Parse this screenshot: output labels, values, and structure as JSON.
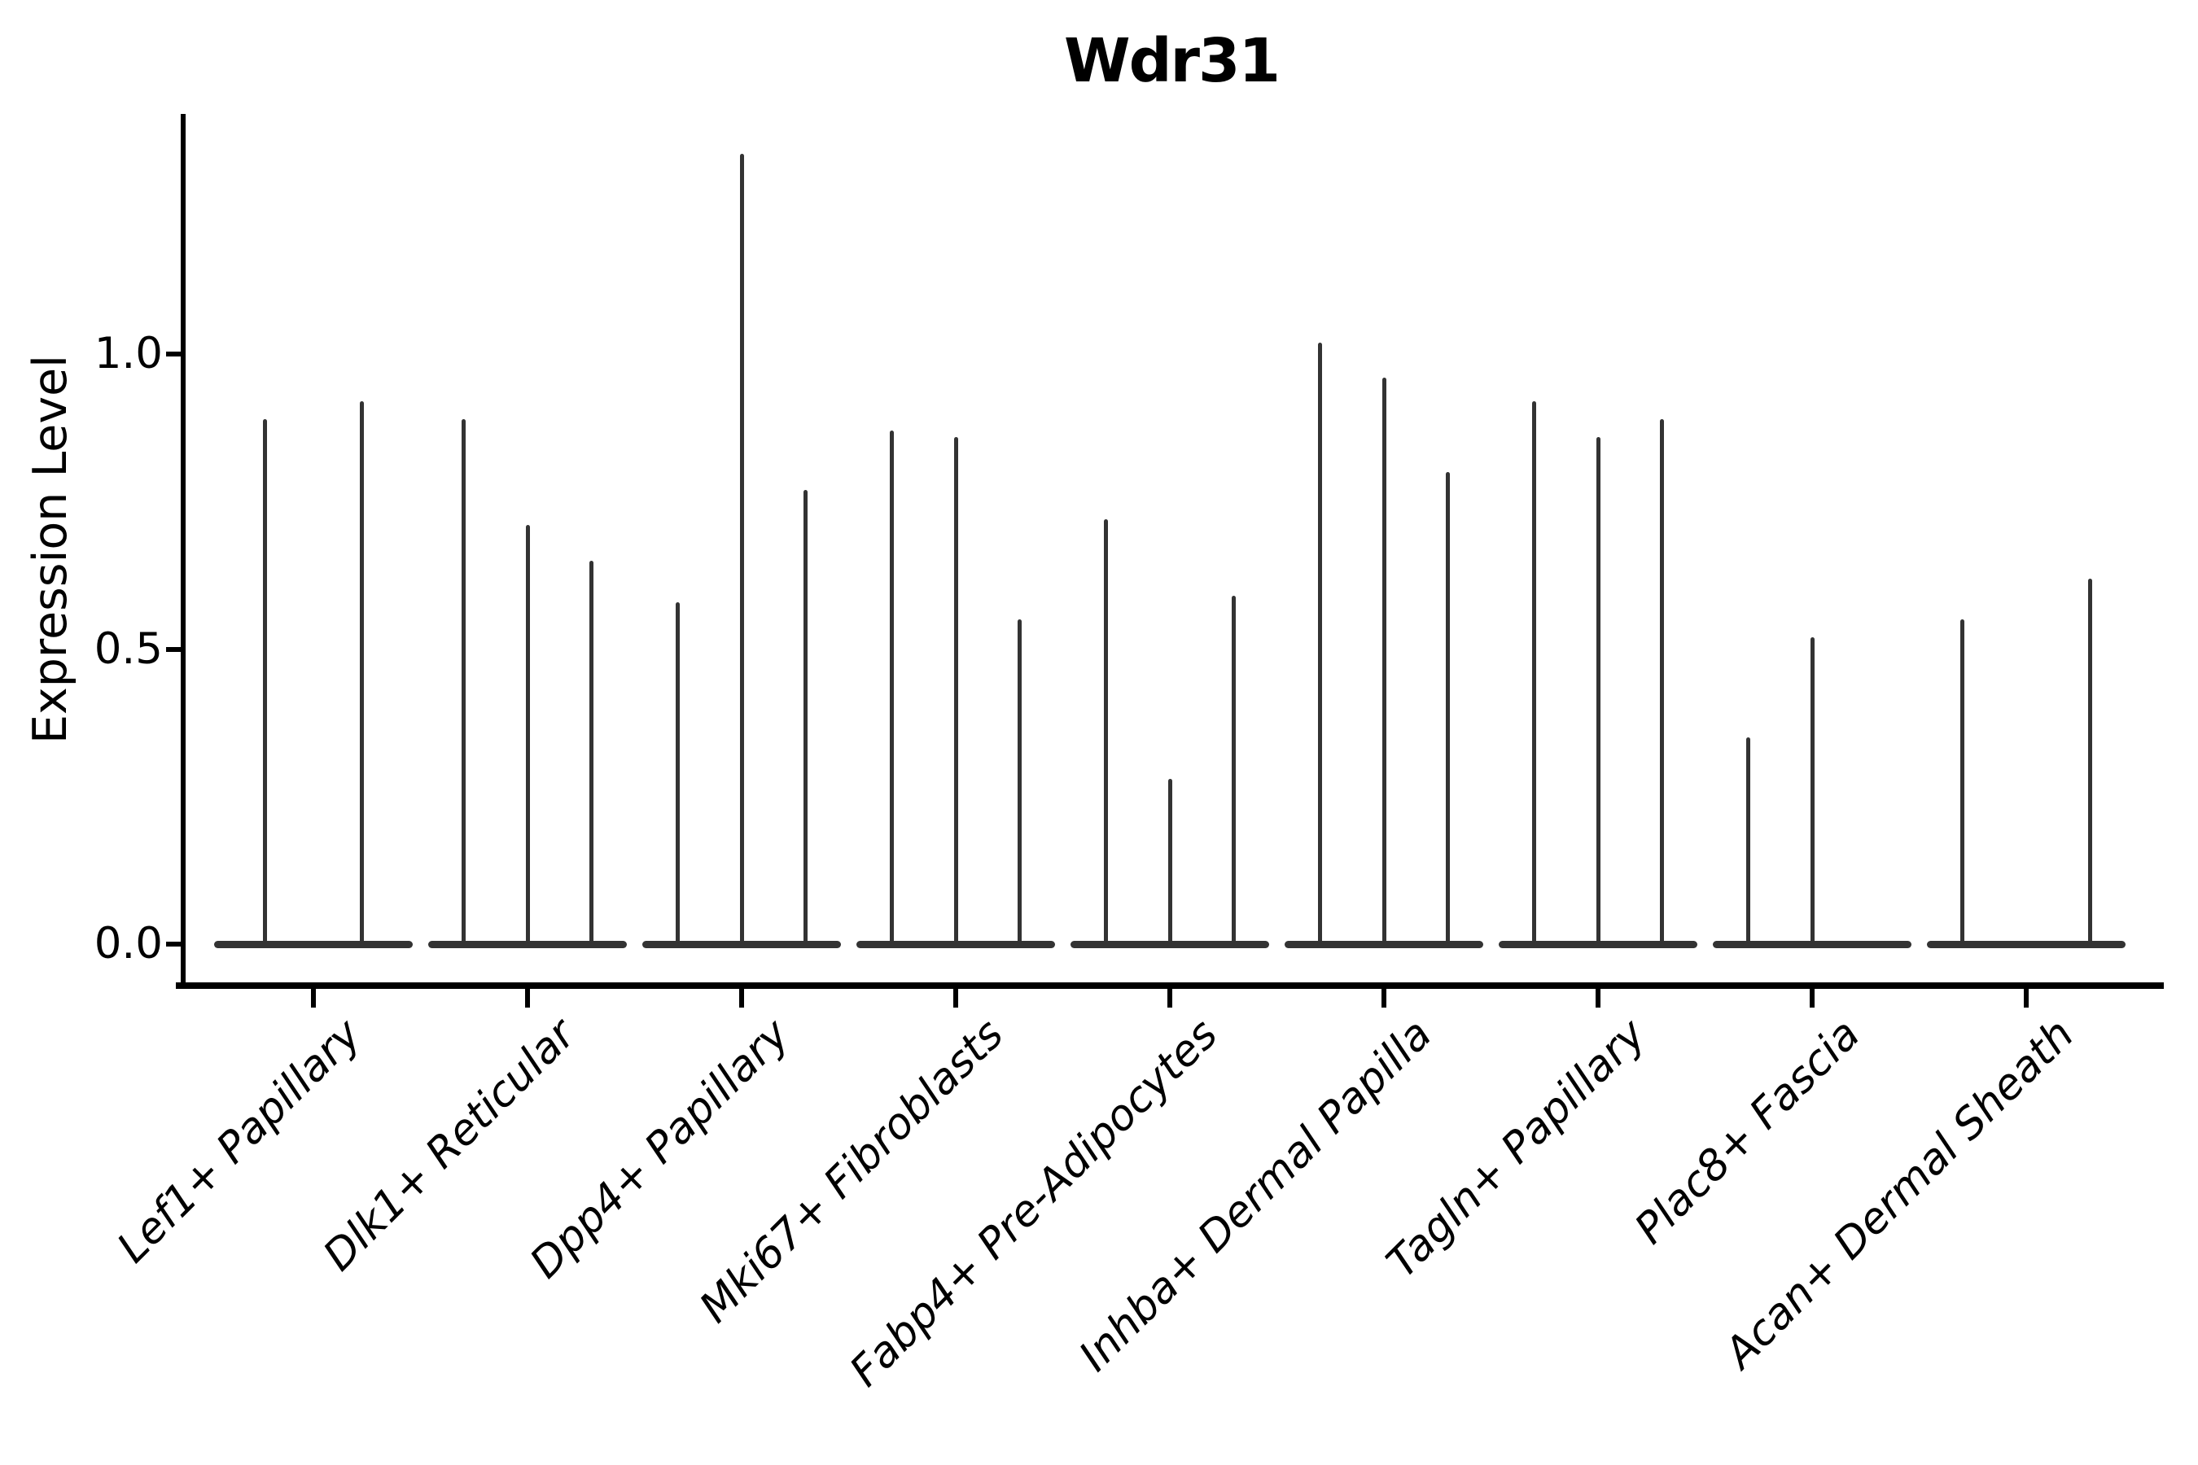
{
  "title": "Wdr31",
  "colors": {
    "background": "#ffffff",
    "axis": "#000000",
    "text": "#000000",
    "violin": "#333333"
  },
  "chart_data": {
    "type": "violin",
    "title": "Wdr31",
    "xlabel": "",
    "ylabel": "Expression Level",
    "ylim": [
      -0.07,
      1.41
    ],
    "ytick_labels": [
      "0.0",
      "0.5",
      "1.0"
    ],
    "ytick_values": [
      0.0,
      0.5,
      1.0
    ],
    "grid": false,
    "legend_position": "none",
    "x_label_rotation_deg": 45,
    "description": "Needle-shaped violins (wide flat base at 0, thin spike up to max expression); 2-3 violins per cell-type category",
    "categories": [
      "Lef1+ Papillary",
      "Dlk1+ Reticular",
      "Dpp4+ Papillary",
      "Mki67+ Fibroblasts",
      "Fabp4+ Pre-Adipocytes",
      "Inhba+ Dermal Papilla",
      "Tagln+ Papillary",
      "Plac8+ Fascia",
      "Acan+ Dermal Sheath"
    ],
    "series": [
      {
        "category": "Lef1+ Papillary",
        "violins": [
          {
            "offset": -0.225,
            "max": 0.89
          },
          {
            "offset": 0.225,
            "max": 0.92
          }
        ]
      },
      {
        "category": "Dlk1+ Reticular",
        "violins": [
          {
            "offset": -0.3,
            "max": 0.89
          },
          {
            "offset": 0.0,
            "max": 0.71
          },
          {
            "offset": 0.3,
            "max": 0.65
          }
        ]
      },
      {
        "category": "Dpp4+ Papillary",
        "violins": [
          {
            "offset": -0.3,
            "max": 0.58
          },
          {
            "offset": 0.0,
            "max": 1.34
          },
          {
            "offset": 0.3,
            "max": 0.77
          }
        ]
      },
      {
        "category": "Mki67+ Fibroblasts",
        "violins": [
          {
            "offset": -0.3,
            "max": 0.87
          },
          {
            "offset": 0.0,
            "max": 0.86
          },
          {
            "offset": 0.3,
            "max": 0.55
          }
        ]
      },
      {
        "category": "Fabp4+ Pre-Adipocytes",
        "violins": [
          {
            "offset": -0.3,
            "max": 0.72
          },
          {
            "offset": 0.0,
            "max": 0.28
          },
          {
            "offset": 0.3,
            "max": 0.59
          }
        ]
      },
      {
        "category": "Inhba+ Dermal Papilla",
        "violins": [
          {
            "offset": -0.3,
            "max": 1.02
          },
          {
            "offset": 0.0,
            "max": 0.96
          },
          {
            "offset": 0.3,
            "max": 0.8
          }
        ]
      },
      {
        "category": "Tagln+ Papillary",
        "violins": [
          {
            "offset": -0.3,
            "max": 0.92
          },
          {
            "offset": 0.0,
            "max": 0.86
          },
          {
            "offset": 0.3,
            "max": 0.89
          }
        ]
      },
      {
        "category": "Plac8+ Fascia",
        "violins": [
          {
            "offset": -0.3,
            "max": 0.35
          },
          {
            "offset": 0.0,
            "max": 0.52
          }
        ]
      },
      {
        "category": "Acan+ Dermal Sheath",
        "violins": [
          {
            "offset": -0.3,
            "max": 0.55
          },
          {
            "offset": 0.3,
            "max": 0.62
          }
        ]
      }
    ]
  }
}
